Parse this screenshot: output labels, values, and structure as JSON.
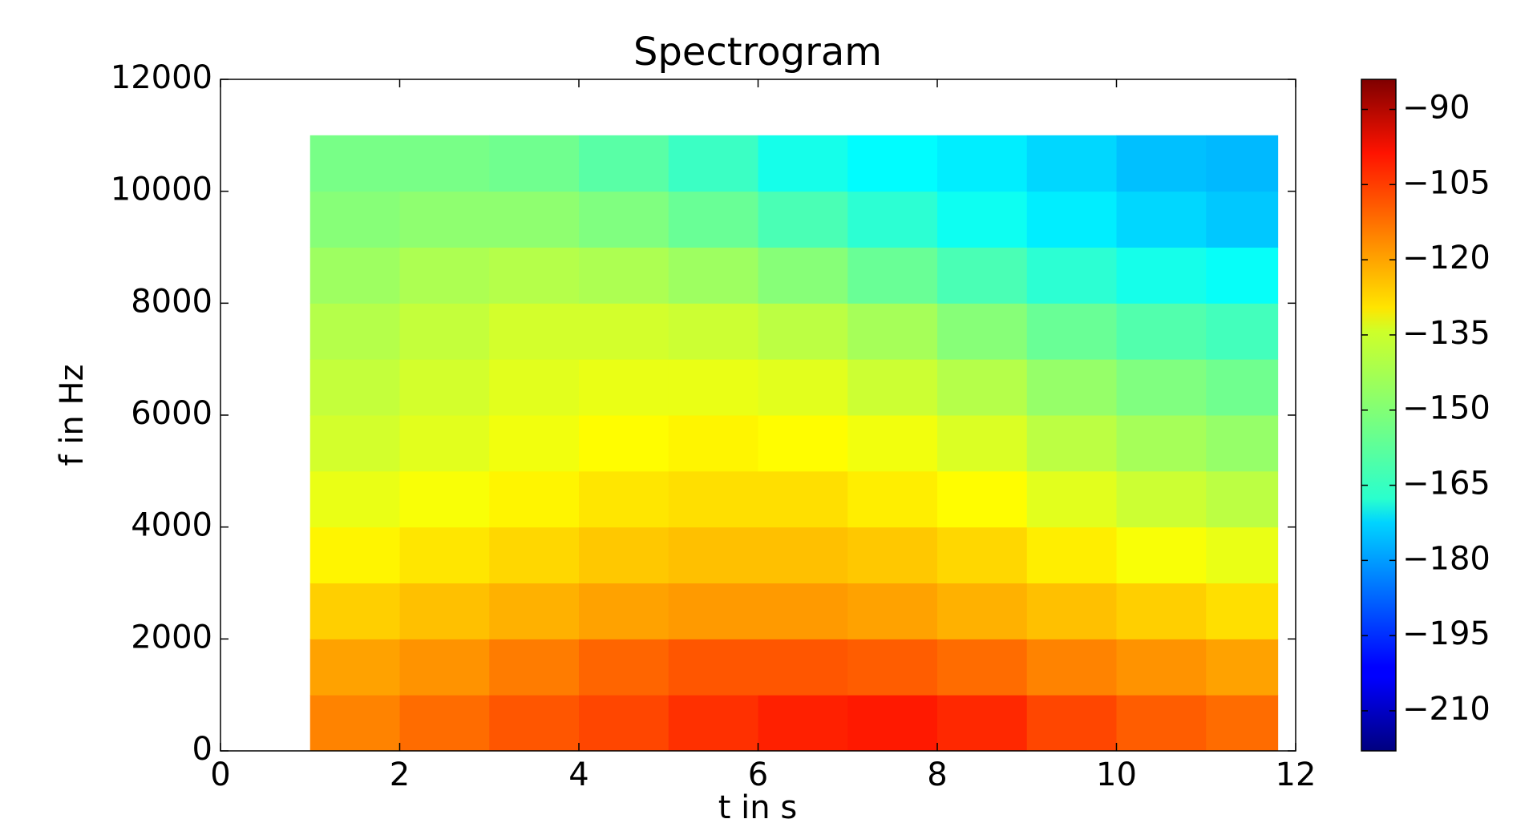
{
  "chart_data": {
    "type": "heatmap",
    "title": "Spectrogram",
    "x_label": "t in s",
    "y_label": "f in Hz",
    "xbins": [
      1,
      2,
      3,
      4,
      5,
      6,
      7,
      8,
      9,
      10,
      11,
      11.8
    ],
    "ybins": [
      0,
      1000,
      2000,
      3000,
      4000,
      5000,
      6000,
      7000,
      8000,
      9000,
      10000,
      11000
    ],
    "values": [
      [
        -118,
        -115,
        -112,
        -110,
        -107,
        -105,
        -104,
        -106,
        -110,
        -113,
        -115
      ],
      [
        -122,
        -120,
        -117,
        -114,
        -112,
        -112,
        -113,
        -115,
        -118,
        -120,
        -122
      ],
      [
        -128,
        -126,
        -124,
        -122,
        -121,
        -121,
        -122,
        -124,
        -126,
        -128,
        -130
      ],
      [
        -133,
        -131,
        -129,
        -127,
        -126,
        -126,
        -127,
        -129,
        -132,
        -135,
        -137
      ],
      [
        -137,
        -135,
        -133,
        -131,
        -130,
        -130,
        -132,
        -134,
        -138,
        -141,
        -143
      ],
      [
        -140,
        -138,
        -136,
        -134,
        -133,
        -134,
        -136,
        -139,
        -143,
        -146,
        -148
      ],
      [
        -142,
        -140,
        -138,
        -137,
        -137,
        -138,
        -141,
        -144,
        -148,
        -151,
        -153
      ],
      [
        -144,
        -142,
        -140,
        -140,
        -141,
        -143,
        -146,
        -150,
        -154,
        -157,
        -159
      ],
      [
        -147,
        -145,
        -144,
        -145,
        -147,
        -150,
        -154,
        -158,
        -162,
        -165,
        -167
      ],
      [
        -150,
        -149,
        -149,
        -151,
        -154,
        -158,
        -162,
        -166,
        -170,
        -173,
        -175
      ],
      [
        -152,
        -152,
        -153,
        -156,
        -160,
        -165,
        -168,
        -170,
        -173,
        -176,
        -177
      ]
    ],
    "colormap": "jet",
    "xlim": [
      0,
      12
    ],
    "xticks": [
      0,
      2,
      4,
      6,
      8,
      10,
      12
    ],
    "ylim": [
      0,
      12000
    ],
    "yticks": [
      0,
      2000,
      4000,
      6000,
      8000,
      10000,
      12000
    ],
    "clim": [
      -218,
      -84
    ],
    "cticks": [
      {
        "value": -90,
        "label": "−90"
      },
      {
        "value": -105,
        "label": "−105"
      },
      {
        "value": -120,
        "label": "−120"
      },
      {
        "value": -135,
        "label": "−135"
      },
      {
        "value": -150,
        "label": "−150"
      },
      {
        "value": -165,
        "label": "−165"
      },
      {
        "value": -180,
        "label": "−180"
      },
      {
        "value": -195,
        "label": "−195"
      },
      {
        "value": -210,
        "label": "−210"
      }
    ]
  }
}
